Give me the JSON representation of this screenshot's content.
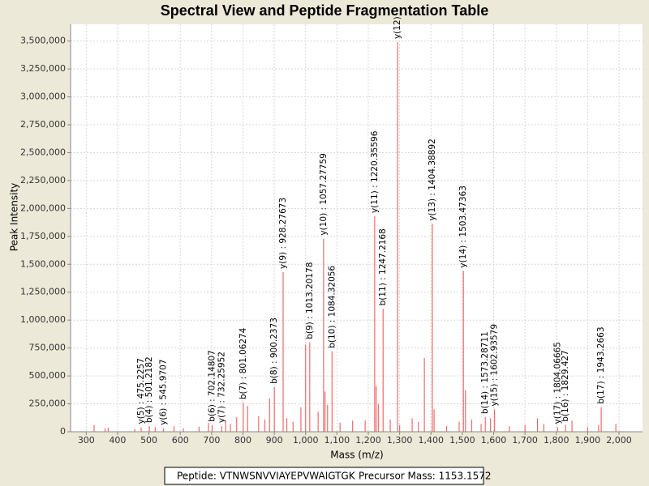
{
  "chart_data": {
    "type": "stem",
    "title": "Spectral View and Peptide Fragmentation Table",
    "x_label": "Mass (m/z)",
    "y_label": "Peak Intensity",
    "xlim": [
      250,
      2075
    ],
    "ylim": [
      0,
      3650000
    ],
    "grid": true,
    "xticks": [
      300,
      400,
      500,
      600,
      700,
      800,
      900,
      {
        "value": 1000,
        "label": "1,000"
      },
      {
        "value": 1100,
        "label": "1,100"
      },
      {
        "value": 1200,
        "label": "1,200"
      },
      {
        "value": 1300,
        "label": "1,300"
      },
      {
        "value": 1400,
        "label": "1,400"
      },
      {
        "value": 1500,
        "label": "1,500"
      },
      {
        "value": 1600,
        "label": "1,600"
      },
      {
        "value": 1700,
        "label": "1,700"
      },
      {
        "value": 1800,
        "label": "1,800"
      },
      {
        "value": 1900,
        "label": "1,900"
      },
      {
        "value": 2000,
        "label": "2,000"
      }
    ],
    "yticks": [
      0,
      {
        "value": 250000,
        "label": "250,000"
      },
      {
        "value": 500000,
        "label": "500,000"
      },
      {
        "value": 750000,
        "label": "750,000"
      },
      {
        "value": 1000000,
        "label": "1,000,000"
      },
      {
        "value": 1250000,
        "label": "1,250,000"
      },
      {
        "value": 1500000,
        "label": "1,500,000"
      },
      {
        "value": 1750000,
        "label": "1,750,000"
      },
      {
        "value": 2000000,
        "label": "2,000,000"
      },
      {
        "value": 2250000,
        "label": "2,250,000"
      },
      {
        "value": 2500000,
        "label": "2,500,000"
      },
      {
        "value": 2750000,
        "label": "2,750,000"
      },
      {
        "value": 3000000,
        "label": "3,000,000"
      },
      {
        "value": 3250000,
        "label": "3,250,000"
      },
      {
        "value": 3500000,
        "label": "3,500,000"
      }
    ],
    "series": [
      {
        "color": "#f06a6a",
        "x": [
          325,
          360,
          370,
          455,
          475.2257,
          501.2182,
          520,
          545.9707,
          580,
          610,
          660,
          690,
          702.14807,
          732.25952,
          745,
          760,
          780,
          801.06274,
          815,
          850,
          870,
          885,
          900.2373,
          928.27673,
          940,
          960,
          985,
          1000,
          1013.20178,
          1040,
          1057.27759,
          1062,
          1070,
          1084.32056,
          1110,
          1150,
          1190,
          1220.35596,
          1225,
          1232,
          1247.2168,
          1270,
          1293.5,
          1300,
          1340,
          1360,
          1379,
          1404.38892,
          1410,
          1450,
          1490,
          1503.47363,
          1510,
          1530,
          1560,
          1573.28711,
          1590,
          1602.93579,
          1650,
          1700,
          1740,
          1760,
          1804.06665,
          1829.427,
          1850,
          1900,
          1935,
          1943.2663,
          1990
        ],
        "values": [
          60000,
          30000,
          35000,
          25000,
          40000,
          50000,
          40000,
          30000,
          50000,
          30000,
          45000,
          80000,
          60000,
          50000,
          90000,
          70000,
          130000,
          260000,
          230000,
          140000,
          110000,
          300000,
          400000,
          1430000,
          120000,
          90000,
          220000,
          780000,
          800000,
          180000,
          1730000,
          360000,
          240000,
          720000,
          80000,
          100000,
          100000,
          1930000,
          410000,
          250000,
          1100000,
          110000,
          3490000,
          60000,
          120000,
          90000,
          660000,
          1860000,
          200000,
          50000,
          90000,
          1440000,
          370000,
          110000,
          70000,
          130000,
          120000,
          200000,
          50000,
          60000,
          120000,
          70000,
          40000,
          60000,
          100000,
          40000,
          60000,
          220000,
          70000
        ],
        "labels": [
          null,
          null,
          null,
          null,
          "y(5) : 475.2257",
          "b(4) : 501.2182",
          null,
          "y(6) : 545.9707",
          null,
          null,
          null,
          null,
          "b(6) : 702.14807",
          "y(7) : 732.25952",
          null,
          null,
          null,
          "b(7) : 801.06274",
          null,
          null,
          null,
          null,
          "b(8) : 900.2373",
          "y(9) : 928.27673",
          null,
          null,
          null,
          null,
          "b(9) : 1013.20178",
          null,
          "y(10) : 1057.27759",
          null,
          null,
          "b(10) : 1084.32056",
          null,
          null,
          null,
          "y(11) : 1220.35596",
          null,
          null,
          "b(11) : 1247.2168",
          null,
          "y(12)",
          null,
          null,
          null,
          null,
          "y(13) : 1404.38892",
          null,
          null,
          null,
          "y(14) : 1503.47363",
          null,
          null,
          null,
          "b(14) : 1573.28711",
          null,
          "y(15) : 1602.93579",
          null,
          null,
          null,
          null,
          "y(17) : 1804.06665",
          "b(16) : 1829.427",
          null,
          null,
          null,
          "b(17) : 1943.2663",
          null
        ]
      }
    ],
    "footnotes": [
      "Peptide: VTNWSNVVIAYEPVWAIGTGK",
      "Precursor Mass: 1153.1572"
    ]
  }
}
